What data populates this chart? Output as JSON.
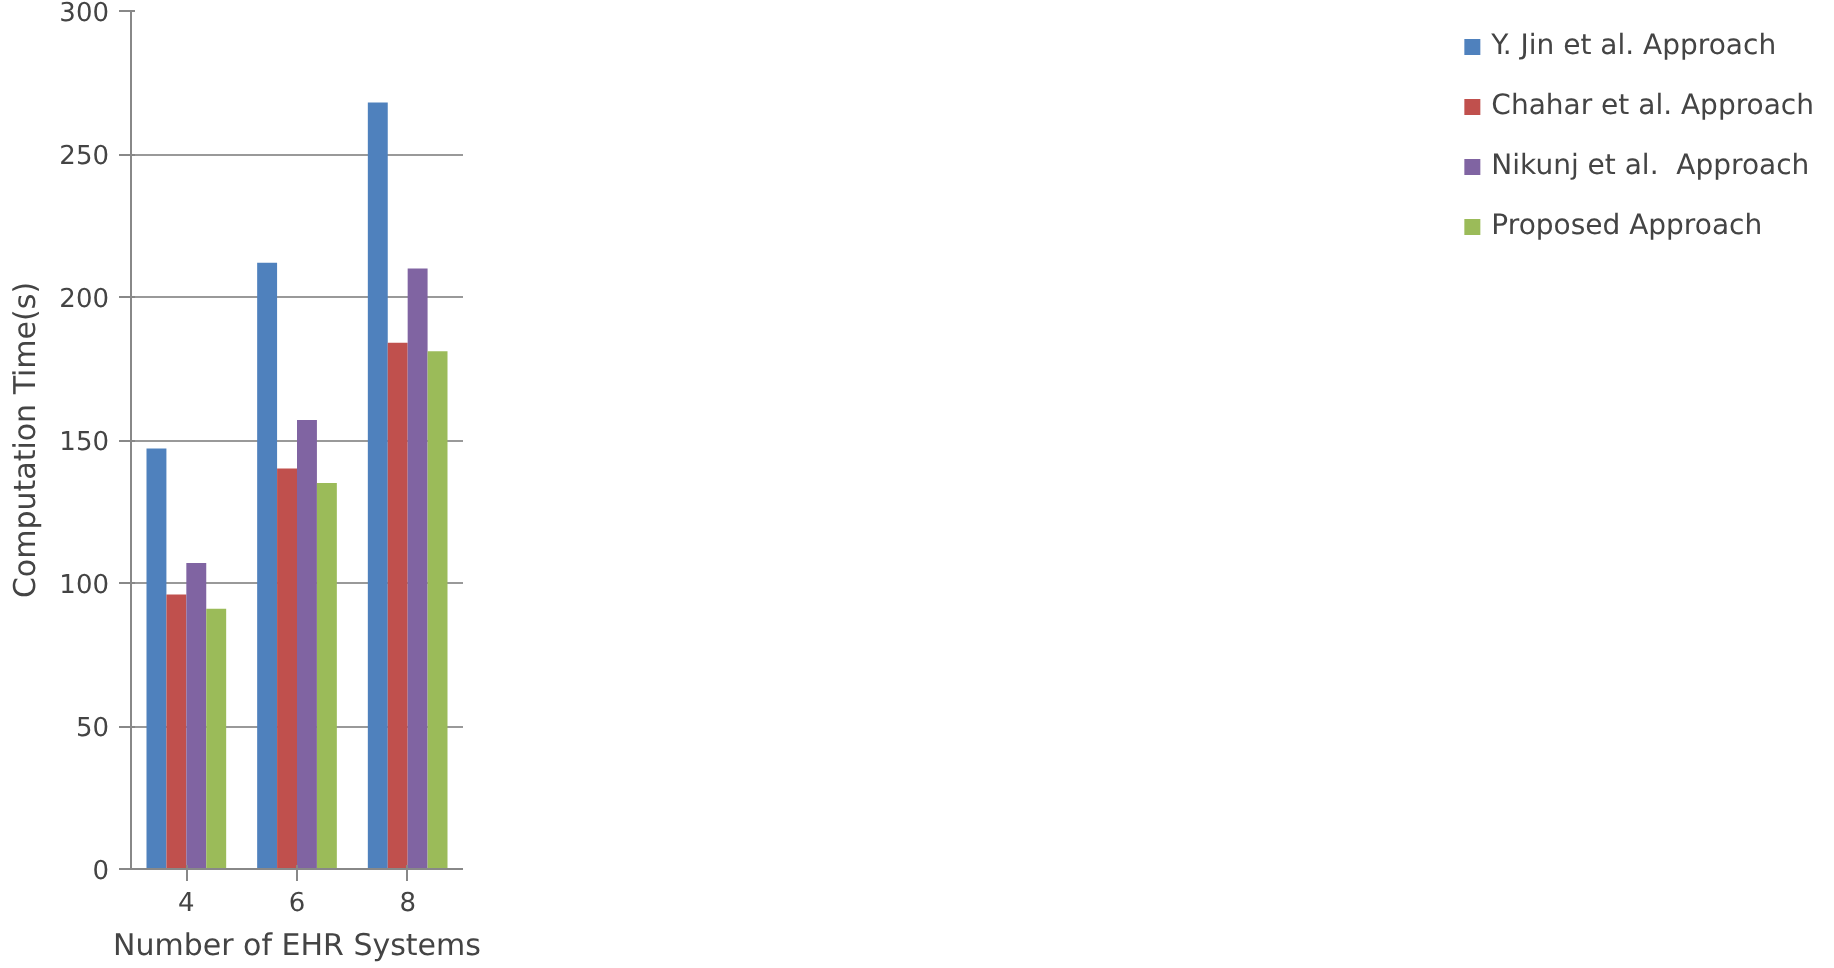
{
  "chart_data": {
    "type": "bar",
    "xlabel": "Number of EHR Systems",
    "ylabel": "Computation Time(s)",
    "categories": [
      "4",
      "6",
      "8"
    ],
    "series": [
      {
        "name": "Y. Jin et al. Approach",
        "color": "#4f81bd",
        "values": [
          147,
          212,
          268
        ]
      },
      {
        "name": "Chahar et al. Approach",
        "color": "#c0504d",
        "values": [
          96,
          140,
          184
        ]
      },
      {
        "name": "Nikunj et al.  Approach",
        "color": "#8064a2",
        "values": [
          107,
          157,
          210
        ]
      },
      {
        "name": "Proposed Approach",
        "color": "#9bbb59",
        "values": [
          91,
          135,
          181
        ]
      }
    ],
    "ylim": [
      0,
      300
    ],
    "yticks": [
      0,
      50,
      100,
      150,
      200,
      250,
      300
    ],
    "grid": "y",
    "legend": "right"
  }
}
